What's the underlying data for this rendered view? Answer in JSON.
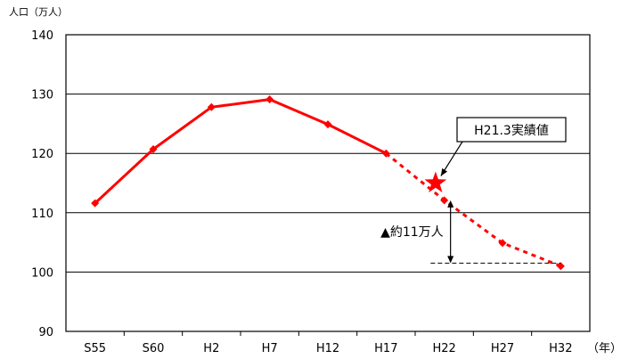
{
  "chart_data": {
    "type": "line",
    "title": "",
    "ylabel": "人口（万人）",
    "xlabel": "（年）",
    "ylim": [
      90,
      140
    ],
    "yticks": [
      "140",
      "130",
      "120",
      "110",
      "100",
      "90"
    ],
    "grid": true,
    "categories": [
      "S55",
      "S60",
      "H2",
      "H7",
      "H12",
      "H17",
      "H22",
      "H27",
      "H32"
    ],
    "series": [
      {
        "name": "",
        "style": "solid",
        "color": "#ff0000",
        "values": [
          111.6,
          120.7,
          127.8,
          129.1,
          124.9,
          120.0,
          null,
          null,
          null
        ]
      },
      {
        "name": "",
        "style": "dashed",
        "color": "#ff0000",
        "values": [
          null,
          null,
          null,
          null,
          null,
          120.0,
          112.1,
          104.9,
          101.0
        ]
      }
    ],
    "actual_point": {
      "x": "H21.3",
      "y": 115.0,
      "label": "H21.3実績値",
      "marker": "star"
    },
    "difference_annotation": {
      "label": "▲約11万人",
      "from": 112.1,
      "to": 101.5
    }
  }
}
